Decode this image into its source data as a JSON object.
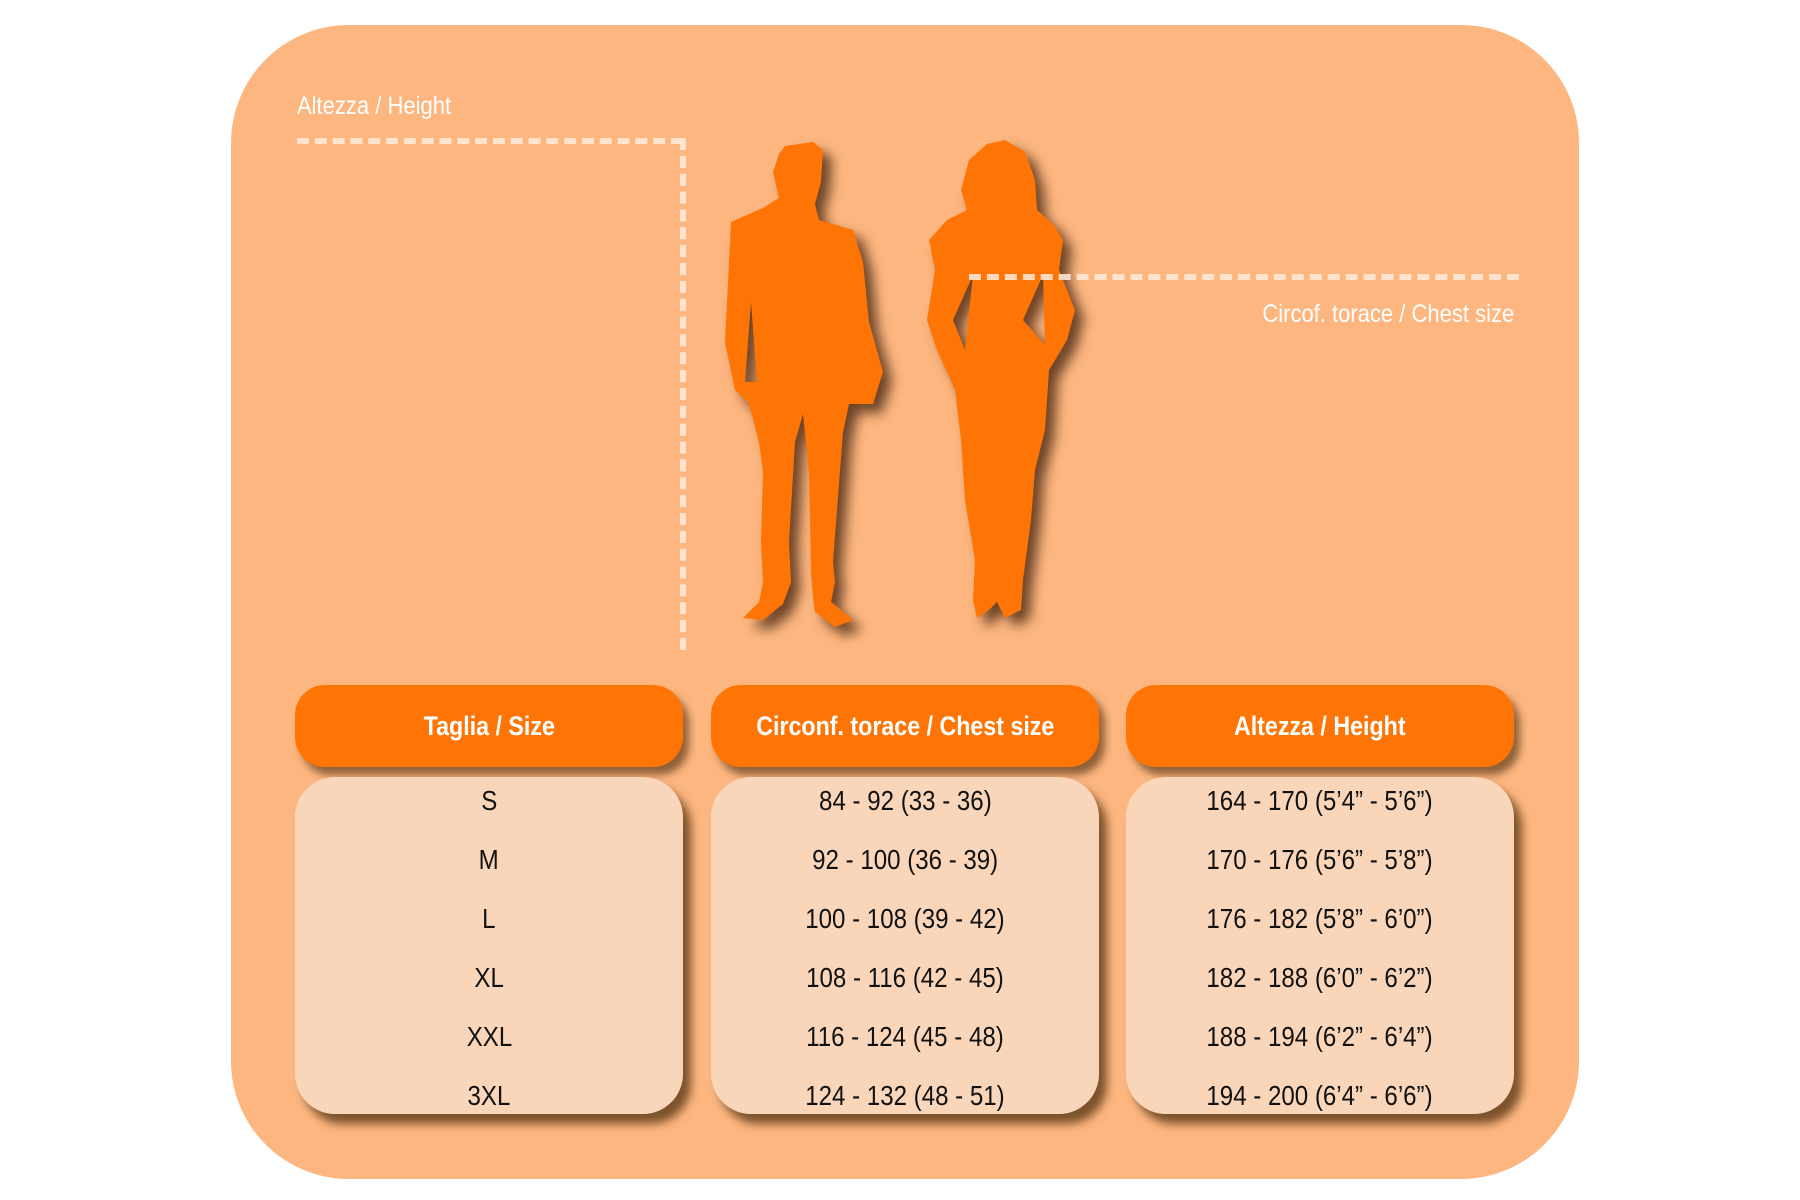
{
  "diagram": {
    "height_label": "Altezza / Height",
    "chest_label": "Circof. torace / Chest size"
  },
  "colors": {
    "panel": "#FDB67F",
    "header": "#FF7505",
    "cell": "#F9D6BA",
    "silhouette": "#FF7505"
  },
  "table": {
    "columns": [
      {
        "header": "Taglia / Size",
        "values": [
          "S",
          "M",
          "L",
          "XL",
          "XXL",
          "3XL"
        ]
      },
      {
        "header": "Circonf. torace / Chest size",
        "values": [
          "84 - 92 (33 - 36)",
          "92 - 100 (36 - 39)",
          "100 - 108 (39 - 42)",
          "108 - 116 (42 - 45)",
          "116 - 124 (45 - 48)",
          "124 - 132 (48 - 51)"
        ]
      },
      {
        "header": "Altezza / Height",
        "values": [
          "164 - 170 (5’4” - 5’6”)",
          "170 - 176 (5’6” - 5’8”)",
          "176 - 182 (5’8” - 6’0”)",
          "182 - 188 (6’0” - 6’2”)",
          "188 - 194 (6’2” - 6’4”)",
          "194 - 200 (6’4” - 6’6”)"
        ]
      }
    ]
  }
}
